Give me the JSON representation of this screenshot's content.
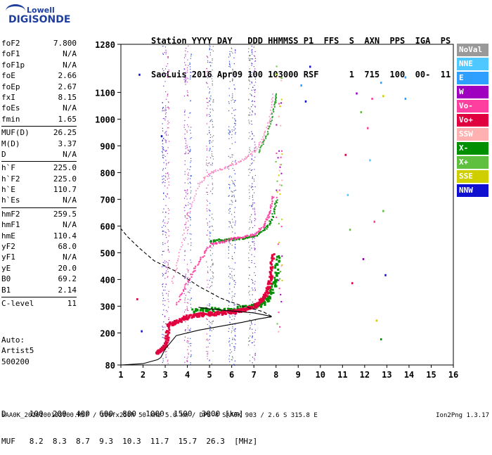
{
  "logo": {
    "line1": "Lowell",
    "line2": "DIGISONDE"
  },
  "header": {
    "labels": "Station YYYY DAY   DDD HHMMSS P1  FFS  S  AXN  PPS  IGA  PS",
    "values": "SaoLuis 2016 Apr09 100 103000 RSF      1  715  100  00-  11"
  },
  "params": [
    {
      "k": "foF2",
      "v": "7.800"
    },
    {
      "k": "foF1",
      "v": "N/A"
    },
    {
      "k": "foF1p",
      "v": "N/A"
    },
    {
      "k": "foE",
      "v": "2.66"
    },
    {
      "k": "foEp",
      "v": "2.67"
    },
    {
      "k": "fxI",
      "v": "8.15"
    },
    {
      "k": "foEs",
      "v": "N/A"
    },
    {
      "k": "fmin",
      "v": "1.65"
    },
    {
      "k": "MUF(D)",
      "v": "26.25"
    },
    {
      "k": "M(D)",
      "v": "3.37"
    },
    {
      "k": "D",
      "v": "N/A"
    },
    {
      "k": "h`F",
      "v": "225.0"
    },
    {
      "k": "h`F2",
      "v": "225.0"
    },
    {
      "k": "h`E",
      "v": "110.7"
    },
    {
      "k": "h`Es",
      "v": "N/A"
    },
    {
      "k": "hmF2",
      "v": "259.5"
    },
    {
      "k": "hmF1",
      "v": "N/A"
    },
    {
      "k": "hmE",
      "v": "110.4"
    },
    {
      "k": "yF2",
      "v": "68.0"
    },
    {
      "k": "yF1",
      "v": "N/A"
    },
    {
      "k": "yE",
      "v": "20.0"
    },
    {
      "k": "B0",
      "v": "69.2"
    },
    {
      "k": "B1",
      "v": "2.14"
    },
    {
      "k": "C-level",
      "v": "11"
    }
  ],
  "notes": {
    "auto": "Auto:",
    "artist": "Artist5",
    "code": "500200"
  },
  "legend": [
    {
      "label": "NoVal",
      "color": "#999999"
    },
    {
      "label": "NNE",
      "color": "#4fc8ff"
    },
    {
      "label": "E",
      "color": "#2f9fff"
    },
    {
      "label": "W",
      "color": "#9f00bf"
    },
    {
      "label": "Vo-",
      "color": "#ff3fa0"
    },
    {
      "label": "Vo+",
      "color": "#e0003f"
    },
    {
      "label": "SSW",
      "color": "#ffb0b0"
    },
    {
      "label": "X-",
      "color": "#008f00"
    },
    {
      "label": "X+",
      "color": "#5fbf3f"
    },
    {
      "label": "SSE",
      "color": "#cfcf00"
    },
    {
      "label": "NNW",
      "color": "#1010d0"
    }
  ],
  "muf_table": {
    "d_row": "D     100  200  400  600  800  1000  1500  3000 [km]",
    "muf_row": "MUF   8.2  8.3  8.7  9.3  10.3  11.7  15.7  26.3  [MHz]"
  },
  "footer": {
    "text": "SAA0K_2016100103000.RSF / 300fx256h 50 kHz 5.0 km / DPS-4 SAA0K 903 / 2.6 S 315.8 E",
    "version": "Ion2Png 1.3.17"
  },
  "chart_data": {
    "type": "scatter",
    "xlim": [
      1,
      16
    ],
    "ylim": [
      80,
      1280
    ],
    "x_ticks": [
      "1",
      "2",
      "3",
      "4",
      "5",
      "6",
      "7",
      "8",
      "9",
      "10",
      "11",
      "12",
      "13",
      "14",
      "15",
      "16"
    ],
    "y_ticks": [
      "80",
      "200",
      "300",
      "400",
      "500",
      "600",
      "700",
      "800",
      "900",
      "1000",
      "1100",
      "1280"
    ],
    "o_trace": {
      "color": "#e0003f",
      "points": [
        [
          2.6,
          130
        ],
        [
          2.8,
          140
        ],
        [
          3.0,
          160
        ],
        [
          3.1,
          235
        ],
        [
          3.5,
          245
        ],
        [
          4.0,
          265
        ],
        [
          4.5,
          272
        ],
        [
          5.0,
          275
        ],
        [
          5.5,
          278
        ],
        [
          6.0,
          282
        ],
        [
          6.5,
          290
        ],
        [
          7.0,
          305
        ],
        [
          7.4,
          330
        ],
        [
          7.6,
          370
        ],
        [
          7.75,
          420
        ],
        [
          7.8,
          500
        ]
      ]
    },
    "x_trace": {
      "color": "#008f00",
      "points": [
        [
          4.2,
          285
        ],
        [
          5.0,
          290
        ],
        [
          6.0,
          293
        ],
        [
          6.8,
          300
        ],
        [
          7.3,
          310
        ],
        [
          7.7,
          340
        ],
        [
          7.95,
          400
        ],
        [
          8.05,
          500
        ]
      ]
    },
    "o_multi_2": {
      "color": "#ff3fa0",
      "points": [
        [
          3.5,
          310
        ],
        [
          4.0,
          395
        ],
        [
          4.5,
          470
        ],
        [
          5.0,
          535
        ],
        [
          5.5,
          540
        ],
        [
          6.0,
          555
        ],
        [
          6.5,
          560
        ],
        [
          7.0,
          570
        ],
        [
          7.4,
          600
        ],
        [
          7.7,
          650
        ],
        [
          7.85,
          720
        ]
      ]
    },
    "x_multi_2": {
      "color": "#008f00",
      "points": [
        [
          5.0,
          545
        ],
        [
          5.5,
          550
        ],
        [
          6.0,
          552
        ],
        [
          6.5,
          557
        ],
        [
          7.0,
          565
        ],
        [
          7.5,
          590
        ],
        [
          7.8,
          630
        ],
        [
          8.0,
          700
        ]
      ]
    },
    "o_multi_3": {
      "color": "#ff7fbf",
      "points": [
        [
          3.3,
          390
        ],
        [
          3.6,
          490
        ],
        [
          4.0,
          640
        ],
        [
          4.5,
          760
        ],
        [
          5.0,
          800
        ],
        [
          5.5,
          815
        ],
        [
          6.0,
          830
        ],
        [
          6.5,
          850
        ],
        [
          7.0,
          880
        ],
        [
          7.4,
          930
        ],
        [
          7.7,
          1000
        ],
        [
          7.85,
          1100
        ]
      ]
    },
    "x_multi_3": {
      "color": "#2fa02f",
      "points": [
        [
          7.2,
          880
        ],
        [
          7.6,
          950
        ],
        [
          7.9,
          1050
        ],
        [
          8.0,
          1100
        ]
      ]
    },
    "profile": {
      "color": "#000000",
      "points": [
        [
          1.0,
          80
        ],
        [
          2.0,
          85
        ],
        [
          2.66,
          100
        ],
        [
          2.8,
          108
        ],
        [
          3.0,
          140
        ],
        [
          3.5,
          190
        ],
        [
          4.5,
          210
        ],
        [
          5.5,
          225
        ],
        [
          6.5,
          240
        ],
        [
          7.2,
          252
        ],
        [
          7.6,
          258
        ],
        [
          7.8,
          260
        ],
        [
          7.6,
          265
        ],
        [
          7.0,
          275
        ],
        [
          6.0,
          282
        ],
        [
          5.0,
          290
        ],
        [
          4.5,
          296
        ]
      ]
    },
    "profile_top": {
      "color": "#000000",
      "dash": true,
      "points": [
        [
          7.8,
          262
        ],
        [
          7.4,
          280
        ],
        [
          6.5,
          300
        ],
        [
          5.5,
          330
        ],
        [
          4.5,
          375
        ],
        [
          3.5,
          430
        ],
        [
          2.5,
          470
        ],
        [
          1.8,
          520
        ],
        [
          1.3,
          560
        ],
        [
          1.0,
          590
        ]
      ]
    },
    "noise_columns": [
      3.0,
      4.0,
      5.0,
      6.0,
      6.9
    ]
  }
}
